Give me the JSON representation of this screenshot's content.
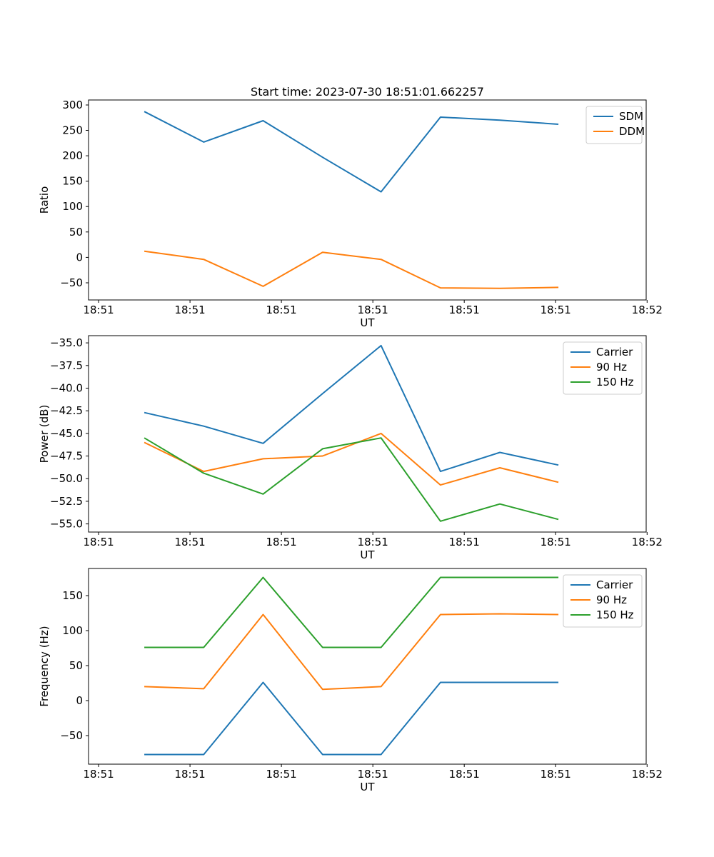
{
  "figure": {
    "kind": "matplotlib-style line figure, 3 stacked subplots"
  },
  "colors": {
    "blue": "#1f77b4",
    "orange": "#ff7f0e",
    "green": "#2ca02c",
    "axis": "#000000",
    "legend_border": "#cccccc",
    "background": "#ffffff"
  },
  "chart_data": [
    {
      "type": "line",
      "title": "Start time: 2023-07-30 18:51:01.662257",
      "xlabel": "UT",
      "ylabel": "Ratio",
      "grid": false,
      "legend_position": "upper right",
      "x_ticks_seconds": [
        0,
        10,
        20,
        30,
        40,
        50,
        60
      ],
      "x_ticklabels": [
        "18:51",
        "18:51",
        "18:51",
        "18:51",
        "18:51",
        "18:51",
        "18:52"
      ],
      "xlim_seconds": [
        -1.1,
        59.9
      ],
      "y_ticks": [
        300,
        250,
        200,
        150,
        100,
        50,
        0,
        -50
      ],
      "y_tick_decimals": 0,
      "ylim": [
        -83.8,
        309.8
      ],
      "x_seconds": [
        5.0,
        11.5,
        18.0,
        24.5,
        30.9,
        37.4,
        43.9,
        50.3
      ],
      "series": [
        {
          "name": "SDM",
          "color": "#1f77b4",
          "values": [
            287,
            227,
            269,
            197,
            129,
            276,
            270,
            262
          ]
        },
        {
          "name": "DDM",
          "color": "#ff7f0e",
          "values": [
            12,
            -4,
            -57,
            10,
            -4,
            -60,
            -61,
            -59
          ]
        }
      ]
    },
    {
      "type": "line",
      "title": "",
      "xlabel": "UT",
      "ylabel": "Power (dB)",
      "grid": false,
      "legend_position": "upper right",
      "x_ticks_seconds": [
        0,
        10,
        20,
        30,
        40,
        50,
        60
      ],
      "x_ticklabels": [
        "18:51",
        "18:51",
        "18:51",
        "18:51",
        "18:51",
        "18:51",
        "18:52"
      ],
      "xlim_seconds": [
        -1.1,
        59.9
      ],
      "y_ticks": [
        -35.0,
        -37.5,
        -40.0,
        -42.5,
        -45.0,
        -47.5,
        -50.0,
        -52.5,
        -55.0
      ],
      "y_tick_decimals": 1,
      "ylim": [
        -55.9,
        -34.2
      ],
      "x_seconds": [
        5.0,
        11.5,
        18.0,
        24.5,
        30.9,
        37.4,
        43.9,
        50.3
      ],
      "series": [
        {
          "name": "Carrier",
          "color": "#1f77b4",
          "values": [
            -42.7,
            -44.2,
            -46.1,
            -40.6,
            -35.3,
            -49.2,
            -47.1,
            -48.5
          ]
        },
        {
          "name": "90 Hz",
          "color": "#ff7f0e",
          "values": [
            -46.0,
            -49.2,
            -47.8,
            -47.5,
            -45.0,
            -50.7,
            -48.8,
            -50.4
          ]
        },
        {
          "name": "150 Hz",
          "color": "#2ca02c",
          "values": [
            -45.5,
            -49.4,
            -51.7,
            -46.7,
            -45.5,
            -54.7,
            -52.8,
            -54.5
          ]
        }
      ]
    },
    {
      "type": "line",
      "title": "",
      "xlabel": "UT",
      "ylabel": "Frequency (Hz)",
      "grid": false,
      "legend_position": "upper right",
      "x_ticks_seconds": [
        0,
        10,
        20,
        30,
        40,
        50,
        60
      ],
      "x_ticklabels": [
        "18:51",
        "18:51",
        "18:51",
        "18:51",
        "18:51",
        "18:51",
        "18:52"
      ],
      "xlim_seconds": [
        -1.1,
        59.9
      ],
      "y_ticks": [
        150,
        100,
        50,
        0,
        -50
      ],
      "y_tick_decimals": 0,
      "ylim": [
        -90.8,
        188.8
      ],
      "x_seconds": [
        5.0,
        11.5,
        18.0,
        24.5,
        30.9,
        37.4,
        43.9,
        50.3
      ],
      "series": [
        {
          "name": "Carrier",
          "color": "#1f77b4",
          "values": [
            -77,
            -77,
            26,
            -77,
            -77,
            26,
            26,
            26
          ]
        },
        {
          "name": "90 Hz",
          "color": "#ff7f0e",
          "values": [
            20,
            17,
            123,
            16,
            20,
            123,
            124,
            123
          ]
        },
        {
          "name": "150 Hz",
          "color": "#2ca02c",
          "values": [
            76,
            76,
            176,
            76,
            76,
            176,
            176,
            176
          ]
        }
      ]
    }
  ]
}
